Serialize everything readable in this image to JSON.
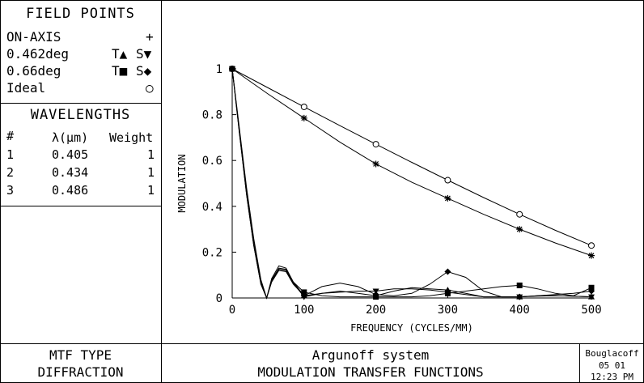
{
  "field_points": {
    "title": "FIELD POINTS",
    "rows": [
      {
        "label": "ON-AXIS",
        "t": "",
        "s": "+"
      },
      {
        "label": "0.462deg",
        "t": "T▲",
        "s": "S▼"
      },
      {
        "label": "0.66deg",
        "t": "T■",
        "s": "S◆"
      },
      {
        "label": "Ideal",
        "t": "",
        "s": "○"
      }
    ]
  },
  "wavelengths": {
    "title": "WAVELENGTHS",
    "headers": {
      "num": "#",
      "lambda": "λ(μm)",
      "weight": "Weight"
    },
    "rows": [
      {
        "num": "1",
        "lambda": "0.405",
        "weight": "1"
      },
      {
        "num": "2",
        "lambda": "0.434",
        "weight": "1"
      },
      {
        "num": "3",
        "lambda": "0.486",
        "weight": "1"
      }
    ]
  },
  "footer": {
    "mtf_type_label": "MTF TYPE",
    "mtf_type_value": "DIFFRACTION",
    "system_name": "Argunoff system",
    "plot_title": "MODULATION TRANSFER FUNCTIONS",
    "author": "Bouglacoff",
    "date": "05 01",
    "time": "12:23 PM"
  },
  "chart_data": {
    "type": "line",
    "xlabel": "FREQUENCY (CYCLES/MM)",
    "ylabel": "MODULATION",
    "xlim": [
      0,
      500
    ],
    "ylim": [
      0,
      1
    ],
    "xticks": [
      0,
      100,
      200,
      300,
      400,
      500
    ],
    "yticks": [
      0,
      0.2,
      0.4,
      0.6,
      0.8,
      1
    ],
    "ytick_labels": [
      "0",
      "0.2",
      "0.4",
      "0.6",
      "0.8",
      "1"
    ],
    "grid": false,
    "series": [
      {
        "name": "Ideal",
        "marker": "circle",
        "x": [
          0,
          50,
          100,
          150,
          200,
          250,
          300,
          350,
          400,
          450,
          500
        ],
        "y": [
          1.0,
          0.917,
          0.834,
          0.752,
          0.671,
          0.592,
          0.514,
          0.438,
          0.365,
          0.295,
          0.229
        ]
      },
      {
        "name": "ON-AXIS",
        "marker": "star",
        "x": [
          0,
          50,
          100,
          150,
          200,
          250,
          300,
          350,
          400,
          450,
          500
        ],
        "y": [
          1.0,
          0.89,
          0.785,
          0.68,
          0.585,
          0.505,
          0.435,
          0.365,
          0.3,
          0.24,
          0.185
        ]
      },
      {
        "name": "0.462deg T",
        "marker": "triangle-up",
        "x": [
          0,
          10,
          20,
          30,
          40,
          48,
          55,
          65,
          75,
          85,
          100,
          125,
          150,
          175,
          200,
          225,
          250,
          275,
          300,
          325,
          350,
          375,
          400,
          425,
          450,
          475,
          500
        ],
        "y": [
          1.0,
          0.74,
          0.48,
          0.26,
          0.08,
          0.0,
          0.07,
          0.12,
          0.115,
          0.06,
          0.01,
          0.02,
          0.03,
          0.02,
          0.01,
          0.03,
          0.045,
          0.04,
          0.035,
          0.02,
          0.005,
          0.005,
          0.005,
          0.01,
          0.01,
          0.008,
          0.005
        ]
      },
      {
        "name": "0.462deg S",
        "marker": "triangle-down",
        "x": [
          0,
          10,
          20,
          30,
          40,
          48,
          55,
          65,
          75,
          85,
          100,
          125,
          150,
          175,
          200,
          225,
          250,
          275,
          300,
          325,
          350,
          375,
          400,
          425,
          450,
          475,
          500
        ],
        "y": [
          1.0,
          0.73,
          0.47,
          0.25,
          0.07,
          0.0,
          0.075,
          0.125,
          0.12,
          0.065,
          0.005,
          0.02,
          0.025,
          0.03,
          0.03,
          0.04,
          0.04,
          0.035,
          0.025,
          0.015,
          0.005,
          0.005,
          0.005,
          0.008,
          0.01,
          0.008,
          0.005
        ]
      },
      {
        "name": "0.66deg T",
        "marker": "square",
        "x": [
          0,
          10,
          20,
          30,
          40,
          48,
          55,
          65,
          75,
          85,
          100,
          125,
          150,
          175,
          200,
          225,
          250,
          275,
          300,
          325,
          350,
          375,
          400,
          425,
          450,
          475,
          500
        ],
        "y": [
          1.0,
          0.72,
          0.45,
          0.23,
          0.06,
          0.0,
          0.08,
          0.13,
          0.125,
          0.07,
          0.025,
          0.01,
          0.005,
          0.005,
          0.005,
          0.005,
          0.005,
          0.01,
          0.02,
          0.03,
          0.04,
          0.05,
          0.055,
          0.04,
          0.02,
          0.01,
          0.045
        ]
      },
      {
        "name": "0.66deg S",
        "marker": "diamond",
        "x": [
          0,
          10,
          20,
          30,
          40,
          48,
          55,
          65,
          75,
          85,
          100,
          125,
          150,
          175,
          200,
          225,
          250,
          275,
          300,
          325,
          350,
          375,
          400,
          425,
          450,
          475,
          500
        ],
        "y": [
          1.0,
          0.72,
          0.45,
          0.23,
          0.06,
          0.0,
          0.085,
          0.14,
          0.13,
          0.07,
          0.01,
          0.05,
          0.065,
          0.05,
          0.015,
          0.01,
          0.02,
          0.06,
          0.115,
          0.09,
          0.03,
          0.005,
          0.005,
          0.01,
          0.015,
          0.02,
          0.03
        ]
      }
    ]
  }
}
